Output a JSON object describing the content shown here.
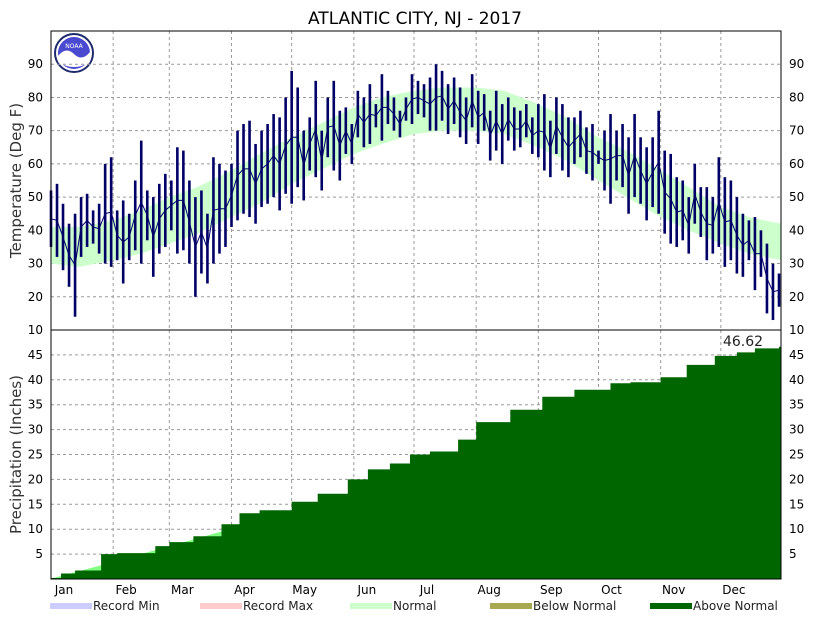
{
  "title": "ATLANTIC CITY, NJ - 2017",
  "chart_data": [
    {
      "type": "line",
      "panel": "temperature",
      "ylabel": "Temperature (Deg F)",
      "ylim": [
        10,
        100
      ],
      "yticks": [
        10,
        20,
        30,
        40,
        50,
        60,
        70,
        80,
        90
      ],
      "grid": true,
      "months": [
        "Jan",
        "Feb",
        "Mar",
        "Apr",
        "May",
        "Jun",
        "Jul",
        "Aug",
        "Sep",
        "Oct",
        "Nov",
        "Dec"
      ],
      "series": [
        {
          "kind": "normal_band",
          "color": "#ccffcc",
          "x": [
            1,
            15,
            32,
            46,
            60,
            74,
            91,
            105,
            121,
            135,
            152,
            166,
            182,
            196,
            213,
            227,
            244,
            258,
            274,
            288,
            305,
            319,
            335,
            349,
            365
          ],
          "low": [
            30,
            29,
            31,
            33,
            36,
            39,
            44,
            48,
            54,
            58,
            63,
            66,
            69,
            70,
            70,
            69,
            65,
            61,
            55,
            50,
            44,
            40,
            36,
            33,
            31
          ],
          "high": [
            41,
            41,
            43,
            46,
            50,
            53,
            58,
            63,
            68,
            72,
            77,
            80,
            82,
            83,
            83,
            82,
            78,
            74,
            68,
            64,
            58,
            53,
            47,
            44,
            42
          ]
        },
        {
          "kind": "daily_range",
          "color": "#000066",
          "x": [
            1,
            4,
            7,
            10,
            13,
            16,
            19,
            22,
            25,
            28,
            31,
            34,
            37,
            40,
            43,
            46,
            49,
            52,
            55,
            58,
            61,
            64,
            67,
            70,
            73,
            76,
            79,
            82,
            85,
            88,
            91,
            94,
            97,
            100,
            103,
            106,
            109,
            112,
            115,
            118,
            121,
            124,
            127,
            130,
            133,
            136,
            139,
            142,
            145,
            148,
            151,
            154,
            157,
            160,
            163,
            166,
            169,
            172,
            175,
            178,
            181,
            184,
            187,
            190,
            193,
            196,
            199,
            202,
            205,
            208,
            211,
            214,
            217,
            220,
            223,
            226,
            229,
            232,
            235,
            238,
            241,
            244,
            247,
            250,
            253,
            256,
            259,
            262,
            265,
            268,
            271,
            274,
            277,
            280,
            283,
            286,
            289,
            292,
            295,
            298,
            301,
            304,
            307,
            310,
            313,
            316,
            319,
            322,
            325,
            328,
            331,
            334,
            337,
            340,
            343,
            346,
            349,
            352,
            355,
            358,
            361,
            364
          ],
          "low": [
            35,
            32,
            28,
            23,
            14,
            32,
            35,
            36,
            33,
            30,
            29,
            31,
            24,
            31,
            34,
            30,
            37,
            26,
            33,
            35,
            40,
            33,
            34,
            30,
            20,
            27,
            24,
            30,
            33,
            35,
            41,
            43,
            45,
            44,
            42,
            47,
            48,
            50,
            46,
            51,
            48,
            53,
            49,
            58,
            56,
            52,
            62,
            58,
            55,
            63,
            60,
            68,
            65,
            66,
            71,
            67,
            72,
            70,
            68,
            73,
            72,
            75,
            74,
            70,
            70,
            73,
            69,
            72,
            68,
            66,
            71,
            66,
            70,
            61,
            64,
            60,
            67,
            64,
            65,
            68,
            63,
            62,
            58,
            56,
            63,
            58,
            56,
            60,
            62,
            57,
            55,
            60,
            52,
            48,
            55,
            53,
            45,
            50,
            48,
            43,
            47,
            45,
            39,
            36,
            35,
            37,
            33,
            42,
            38,
            31,
            33,
            35,
            29,
            31,
            27,
            26,
            31,
            22,
            26,
            15,
            13,
            17
          ],
          "high": [
            52,
            54,
            48,
            42,
            45,
            50,
            51,
            46,
            48,
            60,
            62,
            46,
            49,
            45,
            55,
            67,
            52,
            50,
            54,
            57,
            55,
            65,
            64,
            55,
            50,
            52,
            45,
            62,
            60,
            58,
            60,
            70,
            72,
            73,
            66,
            70,
            72,
            75,
            74,
            80,
            88,
            83,
            70,
            74,
            85,
            70,
            80,
            85,
            76,
            77,
            72,
            82,
            80,
            84,
            78,
            87,
            82,
            80,
            76,
            80,
            87,
            85,
            84,
            86,
            90,
            88,
            84,
            86,
            83,
            80,
            87,
            82,
            81,
            76,
            82,
            78,
            80,
            77,
            76,
            78,
            74,
            78,
            81,
            73,
            80,
            78,
            74,
            74,
            76,
            71,
            72,
            64,
            70,
            75,
            70,
            72,
            68,
            75,
            68,
            65,
            68,
            76,
            64,
            63,
            56,
            55,
            50,
            60,
            53,
            53,
            50,
            62,
            56,
            55,
            50,
            45,
            43,
            44,
            40,
            36,
            30,
            27
          ]
        }
      ]
    },
    {
      "type": "area",
      "panel": "precipitation",
      "ylabel": "Precipitation (Inches)",
      "ylim": [
        0,
        50
      ],
      "yticks": [
        5,
        10,
        15,
        20,
        25,
        30,
        35,
        40,
        45
      ],
      "grid": true,
      "months": [
        "Jan",
        "Feb",
        "Mar",
        "Apr",
        "May",
        "Jun",
        "Jul",
        "Aug",
        "Sep",
        "Oct",
        "Nov",
        "Dec"
      ],
      "annotation": "46.62",
      "series": [
        {
          "name": "Normal",
          "color": "#80ff80",
          "x": [
            1,
            32,
            60,
            91,
            121,
            152,
            182,
            213,
            244,
            274,
            305,
            335,
            365
          ],
          "values": [
            0.1,
            3.4,
            6.6,
            10.1,
            13.4,
            16.7,
            19.7,
            23.5,
            27.4,
            30.8,
            34.0,
            37.0,
            39.8
          ]
        },
        {
          "name": "Above Normal",
          "color": "#006600",
          "x": [
            1,
            6,
            13,
            26,
            34,
            53,
            60,
            72,
            86,
            95,
            105,
            121,
            134,
            149,
            159,
            170,
            180,
            190,
            204,
            213,
            230,
            246,
            262,
            280,
            290,
            305,
            318,
            332,
            343,
            352,
            364
          ],
          "values": [
            0.2,
            1.1,
            1.7,
            5.0,
            5.2,
            6.6,
            7.4,
            8.6,
            11.0,
            13.2,
            13.8,
            15.5,
            17.1,
            20.0,
            22.0,
            23.2,
            25.0,
            25.6,
            28.0,
            31.5,
            34.0,
            36.6,
            38.0,
            39.3,
            39.5,
            40.5,
            43.0,
            44.8,
            45.5,
            46.3,
            46.62
          ]
        }
      ]
    }
  ],
  "legend": [
    {
      "label": "Record Min",
      "color": "#ccccff"
    },
    {
      "label": "Record Max",
      "color": "#ffcccc"
    },
    {
      "label": "Normal",
      "color": "#ccffcc"
    },
    {
      "label": "Below Normal",
      "color": "#a8a850"
    },
    {
      "label": "Above Normal",
      "color": "#006600"
    }
  ],
  "logo": {
    "text": "NOAA",
    "color": "#3333aa"
  }
}
